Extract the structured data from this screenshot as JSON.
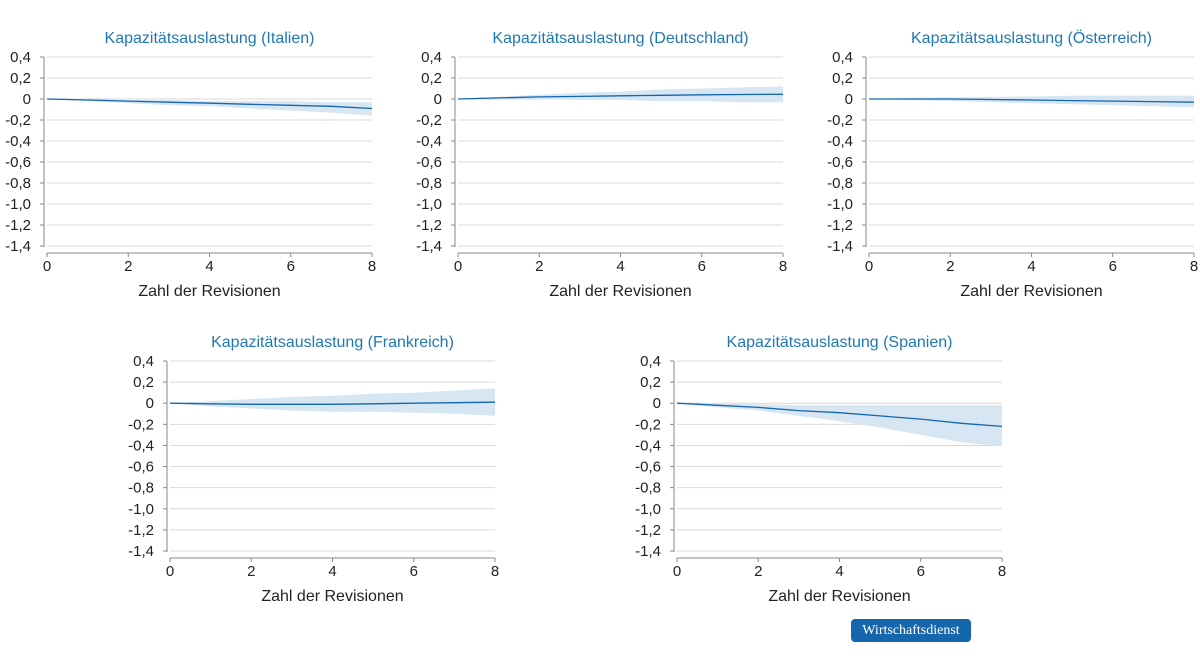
{
  "colors": {
    "title": "#1f78b4",
    "line": "#1666ad",
    "band": "#d6e6f3",
    "grid": "#d9d9d9",
    "axis": "#888888",
    "badge_bg": "#1666ad"
  },
  "badge": {
    "text": "Wirtschaftsdienst"
  },
  "chart_data": [
    {
      "type": "line",
      "title": "Kapazitätsauslastung (Italien)",
      "xlabel": "Zahl der Revisionen",
      "ylabel": "",
      "xlim": [
        0,
        8
      ],
      "ylim": [
        -1.4,
        0.4
      ],
      "x_ticks": [
        "0",
        "2",
        "4",
        "6",
        "8"
      ],
      "y_ticks": [
        "0,4",
        "0,2",
        "0",
        "-0,2",
        "-0,4",
        "-0,6",
        "-0,8",
        "-1,0",
        "-1,2",
        "-1,4"
      ],
      "grid": true,
      "x": [
        0,
        1,
        2,
        3,
        4,
        5,
        6,
        7,
        8
      ],
      "series": [
        {
          "values": [
            0,
            -0.01,
            -0.02,
            -0.03,
            -0.04,
            -0.05,
            -0.06,
            -0.07,
            -0.09
          ]
        },
        {
          "lower": [
            0,
            -0.02,
            -0.04,
            -0.06,
            -0.07,
            -0.09,
            -0.11,
            -0.13,
            -0.16
          ],
          "upper": [
            0,
            0,
            -0.01,
            -0.01,
            -0.02,
            -0.02,
            -0.02,
            -0.03,
            -0.03
          ]
        }
      ]
    },
    {
      "type": "line",
      "title": "Kapazitätsauslastung (Deutschland)",
      "xlabel": "Zahl der Revisionen",
      "ylabel": "",
      "xlim": [
        0,
        8
      ],
      "ylim": [
        -1.4,
        0.4
      ],
      "x_ticks": [
        "0",
        "2",
        "4",
        "6",
        "8"
      ],
      "y_ticks": [
        "0,4",
        "0,2",
        "0",
        "-0,2",
        "-0,4",
        "-0,6",
        "-0,8",
        "-1,0",
        "-1,2",
        "-1,4"
      ],
      "grid": true,
      "x": [
        0,
        1,
        2,
        3,
        4,
        5,
        6,
        7,
        8
      ],
      "series": [
        {
          "values": [
            0,
            0.01,
            0.02,
            0.025,
            0.03,
            0.035,
            0.04,
            0.043,
            0.045
          ]
        },
        {
          "lower": [
            0,
            0,
            0,
            -0.01,
            -0.01,
            -0.02,
            -0.02,
            -0.03,
            -0.03
          ],
          "upper": [
            0,
            0.02,
            0.04,
            0.06,
            0.07,
            0.09,
            0.1,
            0.11,
            0.12
          ]
        }
      ]
    },
    {
      "type": "line",
      "title": "Kapazitätsauslastung (Österreich)",
      "xlabel": "Zahl der Revisionen",
      "ylabel": "",
      "xlim": [
        0,
        8
      ],
      "ylim": [
        -1.4,
        0.4
      ],
      "x_ticks": [
        "0",
        "2",
        "4",
        "6",
        "8"
      ],
      "y_ticks": [
        "0,4",
        "0,2",
        "0",
        "-0,2",
        "-0,4",
        "-0,6",
        "-0,8",
        "-1,0",
        "-1,2",
        "-1,4"
      ],
      "grid": true,
      "x": [
        0,
        1,
        2,
        3,
        4,
        5,
        6,
        7,
        8
      ],
      "series": [
        {
          "values": [
            0,
            0,
            0,
            -0.005,
            -0.01,
            -0.015,
            -0.02,
            -0.025,
            -0.03
          ]
        },
        {
          "lower": [
            0,
            -0.01,
            -0.02,
            -0.03,
            -0.04,
            -0.05,
            -0.06,
            -0.07,
            -0.08
          ],
          "upper": [
            0,
            0.01,
            0.015,
            0.02,
            0.025,
            0.03,
            0.03,
            0.03,
            0.03
          ]
        }
      ]
    },
    {
      "type": "line",
      "title": "Kapazitätsauslastung (Frankreich)",
      "xlabel": "Zahl der Revisionen",
      "ylabel": "",
      "xlim": [
        0,
        8
      ],
      "ylim": [
        -1.4,
        0.4
      ],
      "x_ticks": [
        "0",
        "2",
        "4",
        "6",
        "8"
      ],
      "y_ticks": [
        "0,4",
        "0,2",
        "0",
        "-0,2",
        "-0,4",
        "-0,6",
        "-0,8",
        "-1,0",
        "-1,2",
        "-1,4"
      ],
      "grid": true,
      "x": [
        0,
        1,
        2,
        3,
        4,
        5,
        6,
        7,
        8
      ],
      "series": [
        {
          "values": [
            0,
            -0.005,
            -0.01,
            -0.01,
            -0.01,
            -0.005,
            0,
            0.005,
            0.01
          ]
        },
        {
          "lower": [
            0,
            -0.03,
            -0.05,
            -0.07,
            -0.08,
            -0.08,
            -0.09,
            -0.1,
            -0.12
          ],
          "upper": [
            0,
            0.02,
            0.04,
            0.06,
            0.07,
            0.09,
            0.1,
            0.12,
            0.14
          ]
        }
      ]
    },
    {
      "type": "line",
      "title": "Kapazitätsauslastung (Spanien)",
      "xlabel": "Zahl der Revisionen",
      "ylabel": "",
      "xlim": [
        0,
        8
      ],
      "ylim": [
        -1.4,
        0.4
      ],
      "x_ticks": [
        "0",
        "2",
        "4",
        "6",
        "8"
      ],
      "y_ticks": [
        "0,4",
        "0,2",
        "0",
        "-0,2",
        "-0,4",
        "-0,6",
        "-0,8",
        "-1,0",
        "-1,2",
        "-1,4"
      ],
      "grid": true,
      "x": [
        0,
        1,
        2,
        3,
        4,
        5,
        6,
        7,
        8
      ],
      "series": [
        {
          "values": [
            0,
            -0.02,
            -0.04,
            -0.07,
            -0.09,
            -0.12,
            -0.15,
            -0.19,
            -0.22
          ]
        },
        {
          "lower": [
            0,
            -0.04,
            -0.07,
            -0.12,
            -0.17,
            -0.23,
            -0.3,
            -0.37,
            -0.41
          ],
          "upper": [
            0,
            0,
            -0.01,
            -0.02,
            -0.02,
            -0.02,
            -0.02,
            -0.02,
            -0.02
          ]
        }
      ]
    }
  ]
}
